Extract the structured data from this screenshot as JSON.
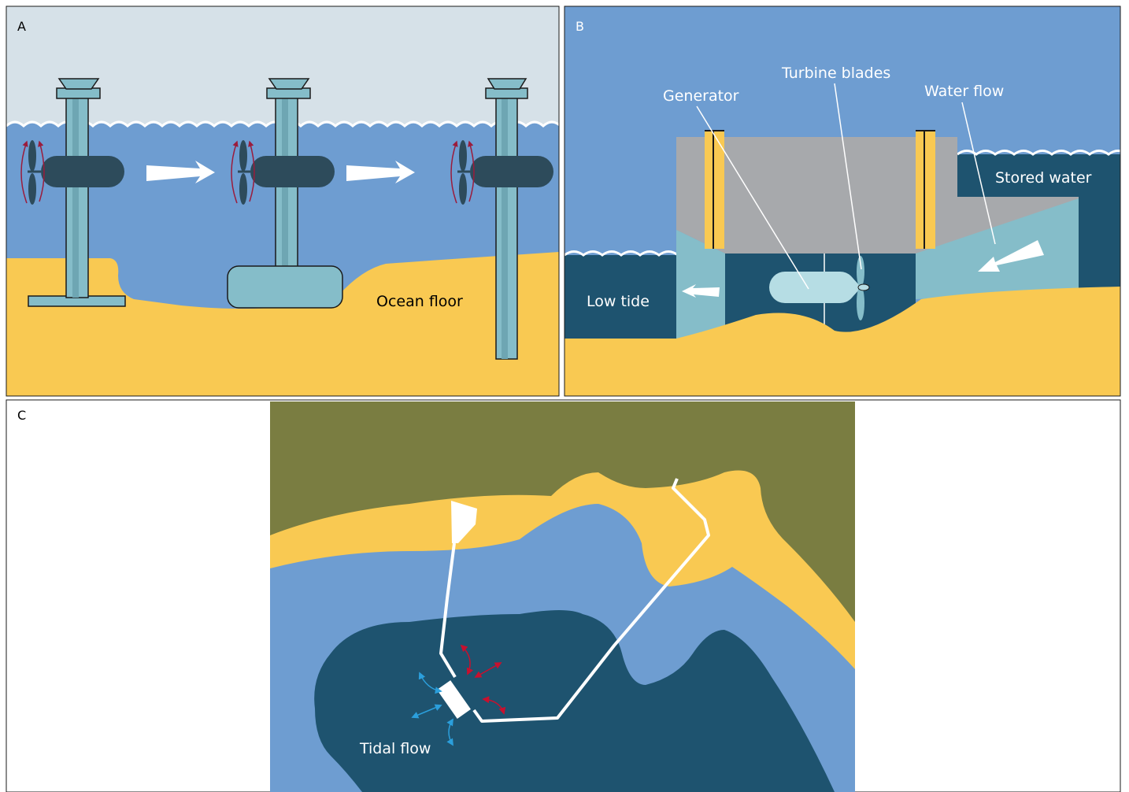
{
  "panels": {
    "a": {
      "letter": "A",
      "ocean_floor_label": "Ocean floor"
    },
    "b": {
      "letter": "B",
      "generator_label": "Generator",
      "turbine_blades_label": "Turbine blades",
      "water_flow_label": "Water flow",
      "stored_water_label": "Stored water",
      "low_tide_label": "Low tide"
    },
    "c": {
      "letter": "C",
      "tidal_flow_label": "Tidal flow"
    }
  },
  "colors": {
    "sky": "#d6e1e8",
    "ocean": "#6e9dd1",
    "deep_water": "#1e536f",
    "sand": "#f9c952",
    "turbine_body": "#85bdc9",
    "nacelle": "#2d4b5b",
    "rotation_arrow": "#9b1c3c",
    "land": "#7a7d41",
    "barrage_gray": "#a7a9ac",
    "flow_blue": "#2b9fdc",
    "flow_red": "#c8102e"
  }
}
